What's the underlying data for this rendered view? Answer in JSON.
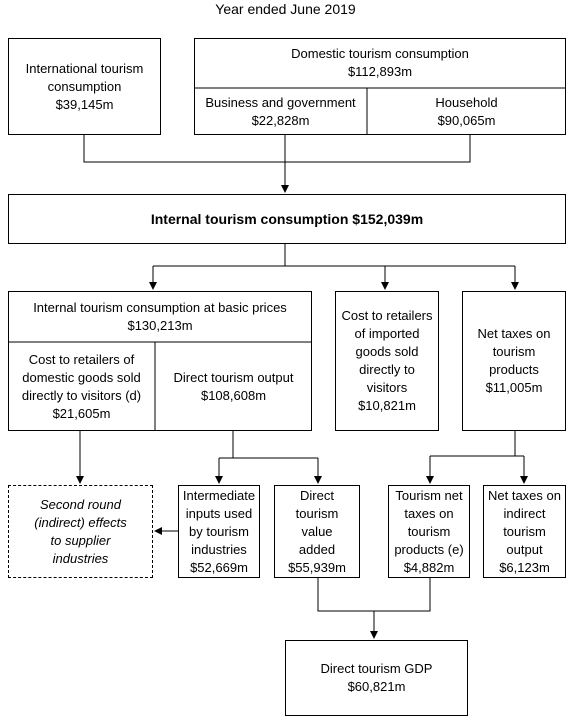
{
  "title": "Year ended June 2019",
  "nodes": {
    "international": "International tourism\nconsumption\n$39,145m",
    "domestic": "Domestic tourism consumption\n$112,893m",
    "business": "Business and government\n$22,828m",
    "household": "Household\n$90,065m",
    "internal": "Internal tourism consumption $152,039m",
    "basic_prices": "Internal tourism consumption at basic prices\n$130,213m",
    "retail_domestic": "Cost to retailers of\ndomestic goods sold\ndirectly to visitors (d)\n$21,605m",
    "direct_output": "Direct tourism output\n$108,608m",
    "retail_imported": "Cost to retailers\nof imported\ngoods sold\ndirectly to\nvisitors\n$10,821m",
    "net_taxes": "Net taxes on\ntourism\nproducts\n$11,005m",
    "second_round": "Second round\n(indirect) effects\nto supplier\nindustries",
    "intermediate": "Intermediate\ninputs used\nby tourism\nindustries\n$52,669m",
    "value_added": "Direct\ntourism\nvalue\nadded\n$55,939m",
    "net_taxes_products": "Tourism net\ntaxes on\ntourism\nproducts (e)\n$4,882m",
    "net_taxes_output": "Net taxes on\nindirect\ntourism\noutput\n$6,123m",
    "gdp": "Direct tourism GDP\n$60,821m"
  }
}
